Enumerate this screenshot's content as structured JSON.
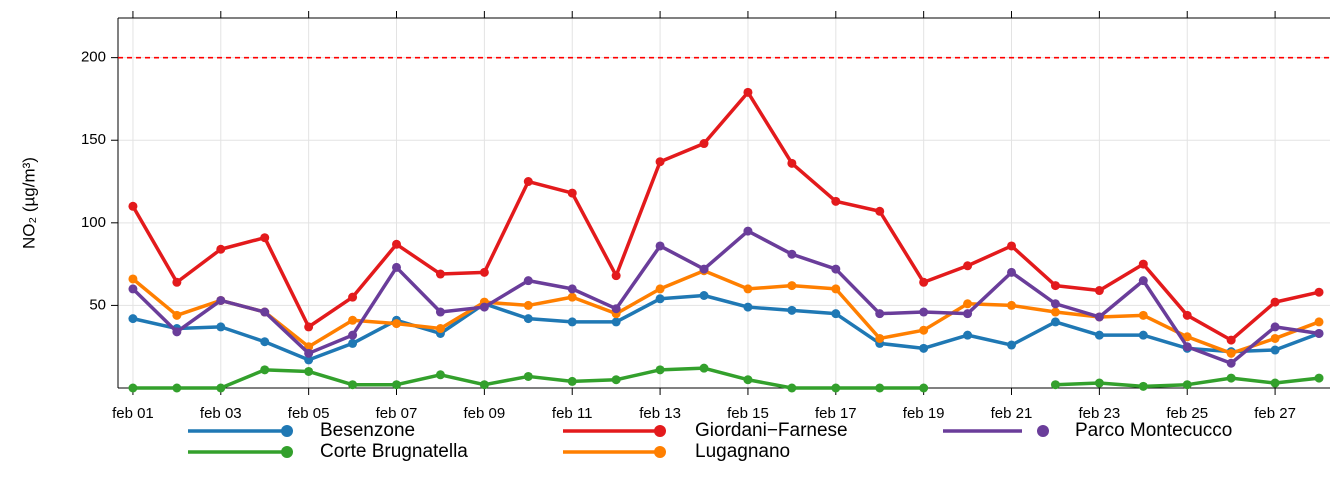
{
  "chart_data": {
    "type": "line",
    "ylabel": "NO₂ (µg/m³)",
    "categories": [
      "feb 01",
      null,
      "feb 03",
      null,
      "feb 05",
      null,
      "feb 07",
      null,
      "feb 09",
      null,
      "feb 11",
      null,
      "feb 13",
      null,
      "feb 15",
      null,
      "feb 17",
      null,
      "feb 19",
      null,
      "feb 21",
      null,
      "feb 23",
      null,
      "feb 25",
      null,
      "feb 27",
      null
    ],
    "series": [
      {
        "name": "Besenzone",
        "color": "#1f78b4",
        "values": [
          42,
          36,
          37,
          28,
          17,
          27,
          41,
          33,
          51,
          42,
          40,
          40,
          54,
          56,
          49,
          47,
          45,
          27,
          24,
          32,
          26,
          40,
          32,
          32,
          24,
          22,
          23,
          33
        ]
      },
      {
        "name": "Corte Brugnatella",
        "color": "#33a02c",
        "values": [
          0,
          0,
          0,
          11,
          10,
          2,
          2,
          8,
          2,
          7,
          4,
          5,
          11,
          12,
          5,
          0,
          0,
          0,
          0,
          null,
          null,
          2,
          3,
          1,
          2,
          6,
          3,
          6
        ]
      },
      {
        "name": "Giordani−Farnese",
        "color": "#e31a1c",
        "values": [
          110,
          64,
          84,
          91,
          37,
          55,
          87,
          69,
          70,
          125,
          118,
          68,
          137,
          148,
          179,
          136,
          113,
          107,
          64,
          74,
          86,
          62,
          59,
          75,
          44,
          29,
          52,
          58
        ]
      },
      {
        "name": "Lugagnano",
        "color": "#ff7f00",
        "values": [
          66,
          44,
          53,
          46,
          25,
          41,
          39,
          36,
          52,
          50,
          55,
          45,
          60,
          71,
          60,
          62,
          60,
          30,
          35,
          51,
          50,
          46,
          43,
          44,
          31,
          21,
          30,
          40
        ]
      },
      {
        "name": "Parco Montecucco",
        "color": "#6a3d9a",
        "values": [
          60,
          34,
          53,
          46,
          21,
          32,
          73,
          46,
          49,
          65,
          60,
          48,
          86,
          72,
          95,
          81,
          72,
          45,
          46,
          45,
          70,
          51,
          43,
          65,
          25,
          15,
          37,
          33
        ]
      }
    ],
    "ylim": [
      0,
      224
    ],
    "yticks": [
      50,
      100,
      150,
      200
    ],
    "grid": true,
    "hline": {
      "value": 200,
      "color": "#ff0000"
    },
    "legend": "bottom"
  }
}
